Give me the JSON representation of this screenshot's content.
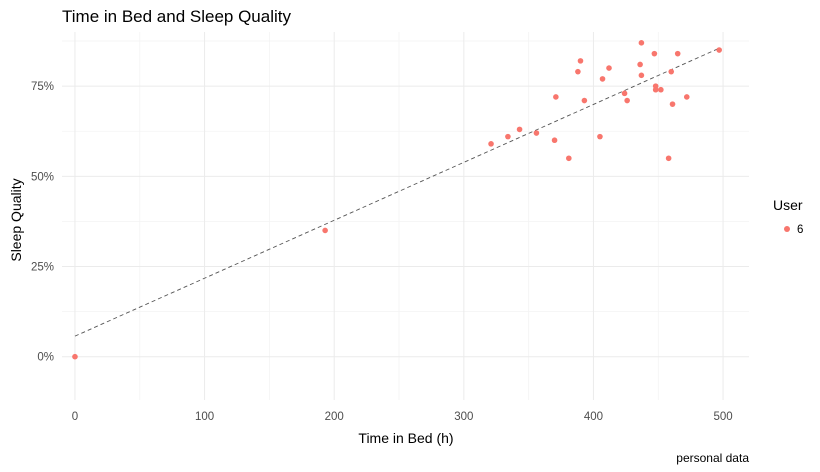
{
  "chart_data": {
    "type": "scatter",
    "title": "Time in Bed and Sleep Quality",
    "xlabel": "Time in Bed (h)",
    "ylabel": "Sleep Quality",
    "caption": "personal data",
    "xlim": [
      -10,
      520
    ],
    "ylim": [
      -0.12,
      0.9
    ],
    "x_ticks": [
      0,
      100,
      200,
      300,
      400,
      500
    ],
    "y_ticks": [
      0,
      0.25,
      0.5,
      0.75
    ],
    "y_tick_labels": [
      "0%",
      "25%",
      "50%",
      "75%"
    ],
    "x_tick_labels": [
      "0",
      "100",
      "200",
      "300",
      "400",
      "500"
    ],
    "grid": true,
    "legend": {
      "title": "User",
      "position": "right",
      "entries": [
        "6"
      ]
    },
    "point_color": "#F8766D",
    "trendline": {
      "style": "dashed",
      "color": "#555555",
      "x": [
        0,
        497
      ],
      "y": [
        0.057,
        0.855
      ]
    },
    "series": [
      {
        "name": "6",
        "x": [
          0,
          193,
          321,
          334,
          343,
          356,
          370,
          371,
          381,
          388,
          390,
          393,
          405,
          407,
          412,
          424,
          426,
          436,
          437,
          437,
          447,
          448,
          448,
          452,
          458,
          460,
          461,
          465,
          472,
          497
        ],
        "y": [
          0.0,
          0.35,
          0.59,
          0.61,
          0.63,
          0.62,
          0.6,
          0.72,
          0.55,
          0.79,
          0.82,
          0.71,
          0.61,
          0.77,
          0.8,
          0.73,
          0.71,
          0.81,
          0.78,
          0.87,
          0.84,
          0.75,
          0.74,
          0.74,
          0.55,
          0.79,
          0.7,
          0.84,
          0.72,
          0.85
        ]
      }
    ]
  }
}
